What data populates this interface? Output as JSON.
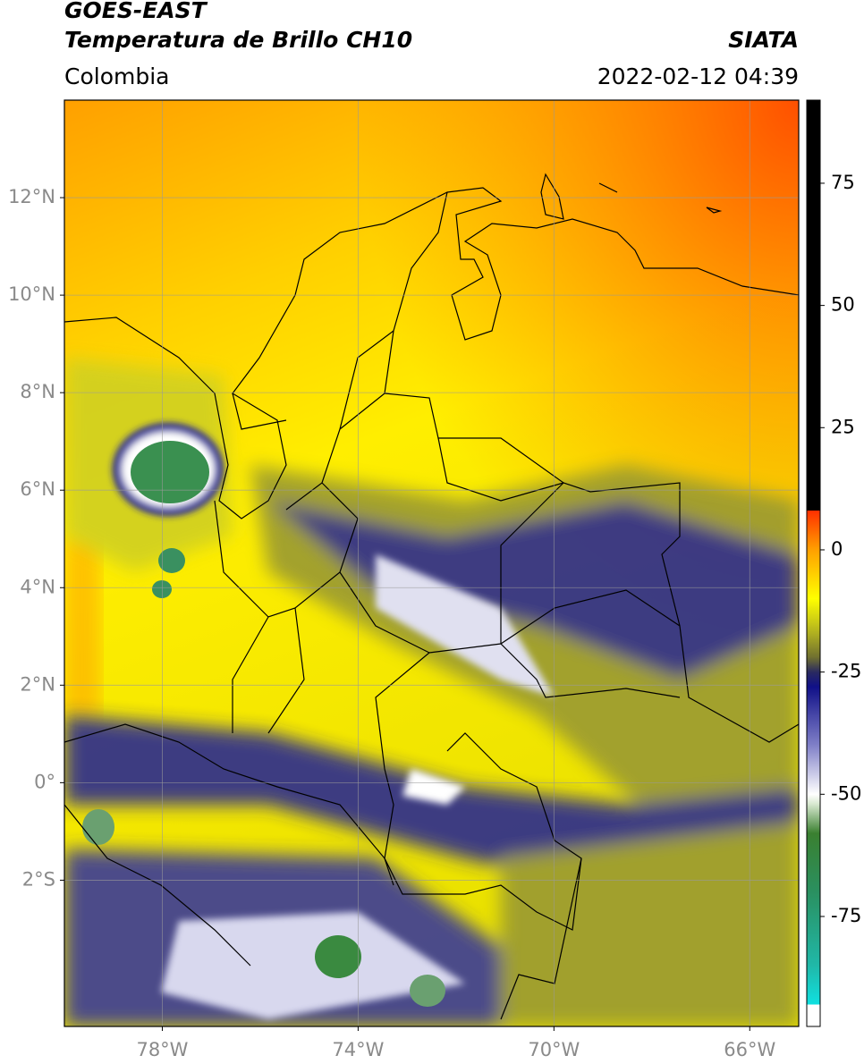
{
  "header": {
    "title": "GOES-EAST",
    "subtitle": "Temperatura de Brillo CH10",
    "source": "SIATA",
    "region": "Colombia",
    "datetime": "2022-02-12 04:39"
  },
  "map": {
    "xlim": [
      -80,
      -65
    ],
    "ylim": [
      -5,
      14
    ],
    "xticks": [
      {
        "value": -78,
        "label": "78°W"
      },
      {
        "value": -74,
        "label": "74°W"
      },
      {
        "value": -70,
        "label": "70°W"
      },
      {
        "value": -66,
        "label": "66°W"
      }
    ],
    "yticks": [
      {
        "value": 12,
        "label": "12°N"
      },
      {
        "value": 10,
        "label": "10°N"
      },
      {
        "value": 8,
        "label": "8°N"
      },
      {
        "value": 6,
        "label": "6°N"
      },
      {
        "value": 4,
        "label": "4°N"
      },
      {
        "value": 2,
        "label": "2°N"
      },
      {
        "value": 0,
        "label": "0°"
      },
      {
        "value": -2,
        "label": "2°S"
      }
    ],
    "grid": true
  },
  "colorbar": {
    "lim": [
      -97.5,
      92
    ],
    "ticks": [
      75,
      50,
      25,
      0,
      -25,
      -50,
      -75
    ],
    "stops": [
      {
        "value": -97.5,
        "color": "#ffffff"
      },
      {
        "value": -93,
        "color": "#ffffff"
      },
      {
        "value": -93,
        "color": "#10e0e0"
      },
      {
        "value": -85,
        "color": "#20b8a8"
      },
      {
        "value": -70,
        "color": "#2a9060"
      },
      {
        "value": -58,
        "color": "#3a8030"
      },
      {
        "value": -52,
        "color": "#d8e8d0"
      },
      {
        "value": -50,
        "color": "#ffffff"
      },
      {
        "value": -40,
        "color": "#8080c8"
      },
      {
        "value": -28,
        "color": "#101088"
      },
      {
        "value": -25,
        "color": "#2a2a60"
      },
      {
        "value": -22,
        "color": "#707030"
      },
      {
        "value": -17,
        "color": "#b0b020"
      },
      {
        "value": -10,
        "color": "#ffff00"
      },
      {
        "value": 0,
        "color": "#ffa000"
      },
      {
        "value": 8,
        "color": "#ff3000"
      },
      {
        "value": 8,
        "color": "#000000"
      },
      {
        "value": 92,
        "color": "#000000"
      }
    ]
  }
}
